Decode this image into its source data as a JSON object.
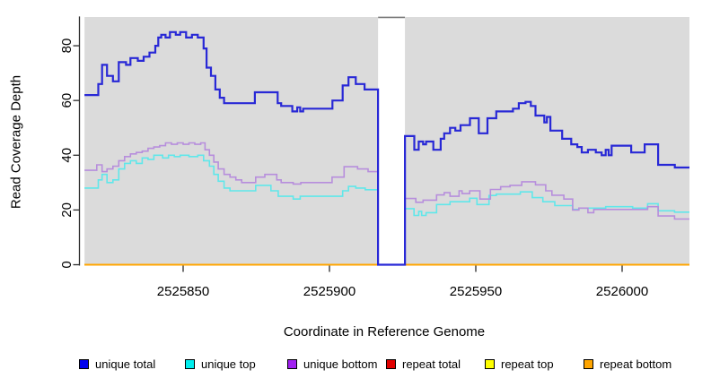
{
  "chart_data": {
    "type": "line",
    "subtype": "step-after",
    "title": "",
    "xlabel": "Coordinate in Reference Genome",
    "ylabel": "Read Coverage Depth",
    "xlim": [
      2525814,
      2526025
    ],
    "ylim": [
      0,
      90.5
    ],
    "grid": false,
    "panel_bg": "#dbdbdb",
    "gap_border_color": "#7a7a7a",
    "axis_color": "#2b2b2b",
    "x_ticks": [
      2525850,
      2525900,
      2525950,
      2526000
    ],
    "y_ticks": [
      0,
      20,
      40,
      60,
      80
    ],
    "coverage_regions": [
      [
        2525816.3,
        2525916.6
      ],
      [
        2525925.8,
        2526023
      ]
    ],
    "gap_region": [
      2525916.6,
      2525925.8
    ],
    "series": [
      {
        "name": "repeat total",
        "color": "#e00000",
        "legend_fill": "#e00000",
        "width": 1.5,
        "paths": [
          [
            [
              2525816.3,
              0
            ],
            [
              2525916.6,
              0
            ]
          ],
          [
            [
              2525925.8,
              0
            ],
            [
              2526023,
              0
            ]
          ]
        ]
      },
      {
        "name": "repeat top",
        "color": "#ffff00",
        "legend_fill": "#ffff00",
        "width": 1.5,
        "paths": [
          [
            [
              2525816.3,
              0
            ],
            [
              2525916.6,
              0
            ]
          ],
          [
            [
              2525925.8,
              0
            ],
            [
              2526023,
              0
            ]
          ]
        ]
      },
      {
        "name": "repeat bottom",
        "color": "#ffa500",
        "legend_fill": "#ffa500",
        "width": 2,
        "paths": [
          [
            [
              2525816.3,
              0
            ],
            [
              2525916.6,
              0
            ]
          ],
          [
            [
              2525925.8,
              0
            ],
            [
              2526023,
              0
            ]
          ]
        ]
      },
      {
        "name": "unique top",
        "color": "#60e7ea",
        "legend_fill": "#00eeee",
        "width": 1.6,
        "paths": [
          [
            [
              2525816.3,
              28
            ],
            [
              2525821,
              31
            ],
            [
              2525822.3,
              33
            ],
            [
              2525824,
              30
            ],
            [
              2525826,
              31
            ],
            [
              2525828,
              35
            ],
            [
              2525830,
              37
            ],
            [
              2525832,
              38
            ],
            [
              2525834,
              37
            ],
            [
              2525836,
              39
            ],
            [
              2525838,
              38.5
            ],
            [
              2525840,
              40
            ],
            [
              2525843,
              39
            ],
            [
              2525845,
              40
            ],
            [
              2525847,
              39.5
            ],
            [
              2525849,
              40
            ],
            [
              2525852,
              39.5
            ],
            [
              2525855,
              40
            ],
            [
              2525857,
              38
            ],
            [
              2525859,
              36
            ],
            [
              2525860.5,
              33
            ],
            [
              2525862,
              30.5
            ],
            [
              2525864,
              28
            ],
            [
              2525866,
              27
            ],
            [
              2525874.8,
              29
            ],
            [
              2525880,
              27
            ],
            [
              2525882.5,
              25
            ],
            [
              2525887.6,
              24
            ],
            [
              2525890,
              25
            ],
            [
              2525904.5,
              27
            ],
            [
              2525906.5,
              28.6
            ],
            [
              2525909,
              28
            ],
            [
              2525912.2,
              27.4
            ],
            [
              2525916.6,
              0
            ],
            [
              2525925.8,
              20.5
            ],
            [
              2525928.9,
              18
            ],
            [
              2525930.5,
              19.5
            ],
            [
              2525931.5,
              18
            ],
            [
              2525933,
              19
            ],
            [
              2525936.6,
              22
            ],
            [
              2525941.2,
              23
            ],
            [
              2525947.9,
              24.3
            ],
            [
              2525950.4,
              22
            ],
            [
              2525954.5,
              25.3
            ],
            [
              2525957,
              25.8
            ],
            [
              2525965.2,
              26.6
            ],
            [
              2525969.3,
              24.5
            ],
            [
              2525972.9,
              23
            ],
            [
              2525977,
              21.6
            ],
            [
              2525983.1,
              20.2
            ],
            [
              2525985.2,
              20.7
            ],
            [
              2525994.4,
              21.2
            ],
            [
              2526003.6,
              20.7
            ],
            [
              2526008.7,
              22.3
            ],
            [
              2526012.3,
              19.7
            ],
            [
              2526017.9,
              19.2
            ],
            [
              2526023,
              19.2
            ]
          ]
        ]
      },
      {
        "name": "unique bottom",
        "color": "#b78edc",
        "legend_fill": "#a020f0",
        "width": 1.6,
        "paths": [
          [
            [
              2525816.3,
              34.5
            ],
            [
              2525820.5,
              36.5
            ],
            [
              2525822.3,
              34
            ],
            [
              2525824,
              35
            ],
            [
              2525826,
              36
            ],
            [
              2525828,
              38
            ],
            [
              2525830,
              39.5
            ],
            [
              2525832,
              40.5
            ],
            [
              2525834,
              41
            ],
            [
              2525836,
              41.5
            ],
            [
              2525838,
              42.5
            ],
            [
              2525840,
              43
            ],
            [
              2525842,
              43.5
            ],
            [
              2525844,
              44.5
            ],
            [
              2525846,
              44
            ],
            [
              2525848,
              44.5
            ],
            [
              2525850,
              44
            ],
            [
              2525852,
              44.5
            ],
            [
              2525854,
              44
            ],
            [
              2525856,
              44.5
            ],
            [
              2525857.5,
              42
            ],
            [
              2525859,
              40
            ],
            [
              2525860.5,
              37.5
            ],
            [
              2525862,
              35
            ],
            [
              2525864,
              33
            ],
            [
              2525866,
              32
            ],
            [
              2525868,
              31
            ],
            [
              2525870,
              30
            ],
            [
              2525874.8,
              32
            ],
            [
              2525877.9,
              33
            ],
            [
              2525882,
              31
            ],
            [
              2525883.5,
              30
            ],
            [
              2525887.6,
              29.5
            ],
            [
              2525890.2,
              30
            ],
            [
              2525900.9,
              32
            ],
            [
              2525905,
              35.8
            ],
            [
              2525909.6,
              35
            ],
            [
              2525913.2,
              34
            ],
            [
              2525916.6,
              0
            ],
            [
              2525925.8,
              24.2
            ],
            [
              2525929.5,
              22.8
            ],
            [
              2525932,
              23.6
            ],
            [
              2525936.6,
              25.5
            ],
            [
              2525939.2,
              26.3
            ],
            [
              2525941.2,
              25
            ],
            [
              2525944.3,
              27
            ],
            [
              2525945.3,
              26
            ],
            [
              2525947.9,
              27
            ],
            [
              2525951.4,
              24
            ],
            [
              2525955,
              27.5
            ],
            [
              2525958.5,
              28.5
            ],
            [
              2525961.7,
              29
            ],
            [
              2525965.7,
              30.3
            ],
            [
              2525970.4,
              29.2
            ],
            [
              2525973.9,
              27
            ],
            [
              2525976,
              25.4
            ],
            [
              2525980.1,
              24
            ],
            [
              2525983.1,
              20
            ],
            [
              2525985.2,
              20.7
            ],
            [
              2525988.3,
              19
            ],
            [
              2525990.3,
              20.2
            ],
            [
              2526008.7,
              21.2
            ],
            [
              2526012.3,
              17.8
            ],
            [
              2526017.9,
              16.7
            ],
            [
              2526023,
              16.7
            ]
          ]
        ]
      },
      {
        "name": "unique total",
        "color": "#2828d6",
        "legend_fill": "#0000ee",
        "width": 2.2,
        "paths": [
          [
            [
              2525816.3,
              62
            ],
            [
              2525821,
              66
            ],
            [
              2525822.3,
              73
            ],
            [
              2525824,
              69
            ],
            [
              2525826,
              67
            ],
            [
              2525828,
              74
            ],
            [
              2525830.5,
              73
            ],
            [
              2525832,
              75.5
            ],
            [
              2525834.5,
              74.5
            ],
            [
              2525836.5,
              76
            ],
            [
              2525838.5,
              77.5
            ],
            [
              2525840.5,
              80
            ],
            [
              2525841.5,
              83
            ],
            [
              2525842.5,
              84
            ],
            [
              2525844,
              83
            ],
            [
              2525845.5,
              85
            ],
            [
              2525847.5,
              84
            ],
            [
              2525849,
              85
            ],
            [
              2525851,
              83
            ],
            [
              2525853,
              84
            ],
            [
              2525855,
              83
            ],
            [
              2525857,
              79
            ],
            [
              2525858,
              72
            ],
            [
              2525859.5,
              69
            ],
            [
              2525861,
              64
            ],
            [
              2525862.5,
              61
            ],
            [
              2525864,
              59
            ],
            [
              2525874.5,
              63
            ],
            [
              2525882.3,
              59
            ],
            [
              2525883.5,
              58
            ],
            [
              2525887.3,
              56
            ],
            [
              2525889,
              57.5
            ],
            [
              2525890,
              56
            ],
            [
              2525891,
              57
            ],
            [
              2525901,
              60
            ],
            [
              2525904.5,
              65.5
            ],
            [
              2525906.5,
              68.5
            ],
            [
              2525909,
              66
            ],
            [
              2525912,
              64
            ],
            [
              2525916.6,
              0
            ],
            [
              2525925.8,
              47
            ],
            [
              2525929,
              42
            ],
            [
              2525930.5,
              45
            ],
            [
              2525932,
              44
            ],
            [
              2525933,
              45
            ],
            [
              2525935.5,
              42
            ],
            [
              2525938,
              46
            ],
            [
              2525939.2,
              48
            ],
            [
              2525941.2,
              50
            ],
            [
              2525943,
              49
            ],
            [
              2525944.8,
              51
            ],
            [
              2525948,
              53.5
            ],
            [
              2525951,
              48
            ],
            [
              2525954,
              53.5
            ],
            [
              2525957,
              56
            ],
            [
              2525962.7,
              57
            ],
            [
              2525964.7,
              59
            ],
            [
              2525967,
              59.5
            ],
            [
              2525968.8,
              58
            ],
            [
              2525970.4,
              54.5
            ],
            [
              2525973.4,
              52
            ],
            [
              2525974.3,
              54
            ],
            [
              2525975.5,
              49
            ],
            [
              2525979.5,
              46
            ],
            [
              2525982.6,
              44
            ],
            [
              2525984.7,
              43
            ],
            [
              2525986.2,
              41
            ],
            [
              2525988.3,
              42
            ],
            [
              2525991,
              41
            ],
            [
              2525993,
              40
            ],
            [
              2525994.4,
              42
            ],
            [
              2525995.4,
              40
            ],
            [
              2525996.4,
              43.5
            ],
            [
              2526003.1,
              41
            ],
            [
              2526007.7,
              44
            ],
            [
              2526012.3,
              36.5
            ],
            [
              2526018,
              35.5
            ],
            [
              2526023,
              35.5
            ]
          ]
        ]
      }
    ]
  },
  "legend": {
    "items": [
      {
        "label": "unique total",
        "fill": "#0000ee"
      },
      {
        "label": "unique top",
        "fill": "#00eeee"
      },
      {
        "label": "unique bottom",
        "fill": "#a020f0"
      },
      {
        "label": "repeat total",
        "fill": "#e00000"
      },
      {
        "label": "repeat top",
        "fill": "#ffff00"
      },
      {
        "label": "repeat bottom",
        "fill": "#ffa500"
      }
    ]
  },
  "axes": {
    "xlabel": "Coordinate in Reference Genome",
    "ylabel": "Read Coverage Depth",
    "x_tick_labels": [
      "2525850",
      "2525900",
      "2525950",
      "2526000"
    ],
    "y_tick_labels": [
      "0",
      "20",
      "40",
      "60",
      "80"
    ]
  }
}
